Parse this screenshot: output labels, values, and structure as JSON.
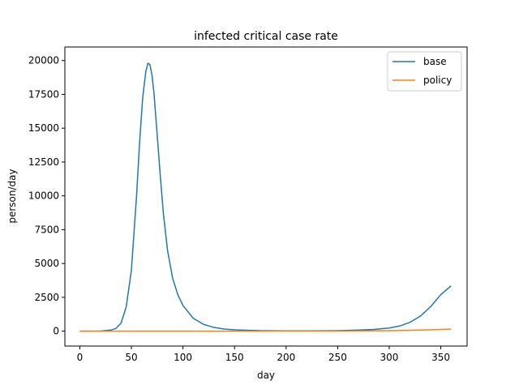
{
  "chart_data": {
    "type": "line",
    "title": "infected critical case rate",
    "xlabel": "day",
    "ylabel": "person/day",
    "xlim": [
      -14.5,
      375.5
    ],
    "ylim": [
      -1100,
      21000
    ],
    "xticks": [
      0,
      50,
      100,
      150,
      200,
      250,
      300,
      350
    ],
    "yticks": [
      0,
      2500,
      5000,
      7500,
      10000,
      12500,
      15000,
      17500,
      20000
    ],
    "grid": false,
    "legend": "top-right",
    "series": [
      {
        "name": "base",
        "color": "#1f77b4",
        "x": [
          0,
          10,
          20,
          30,
          35,
          40,
          45,
          50,
          55,
          58,
          61,
          64,
          66,
          68,
          70,
          72,
          75,
          78,
          81,
          85,
          90,
          95,
          100,
          110,
          120,
          130,
          140,
          150,
          175,
          200,
          225,
          250,
          270,
          285,
          300,
          310,
          320,
          330,
          340,
          350,
          360
        ],
        "y": [
          0,
          2,
          10,
          80,
          200,
          600,
          1800,
          4500,
          10000,
          14000,
          17300,
          19200,
          19800,
          19700,
          18900,
          17500,
          14500,
          11500,
          8700,
          6000,
          3900,
          2700,
          1900,
          950,
          500,
          280,
          160,
          100,
          40,
          20,
          20,
          40,
          80,
          130,
          230,
          380,
          650,
          1100,
          1800,
          2700,
          3350
        ]
      },
      {
        "name": "policy",
        "color": "#ff7f0e",
        "x": [
          0,
          50,
          100,
          150,
          200,
          250,
          280,
          300,
          320,
          340,
          350,
          360
        ],
        "y": [
          0,
          0,
          0,
          2,
          5,
          10,
          20,
          35,
          60,
          100,
          130,
          160
        ]
      }
    ]
  }
}
